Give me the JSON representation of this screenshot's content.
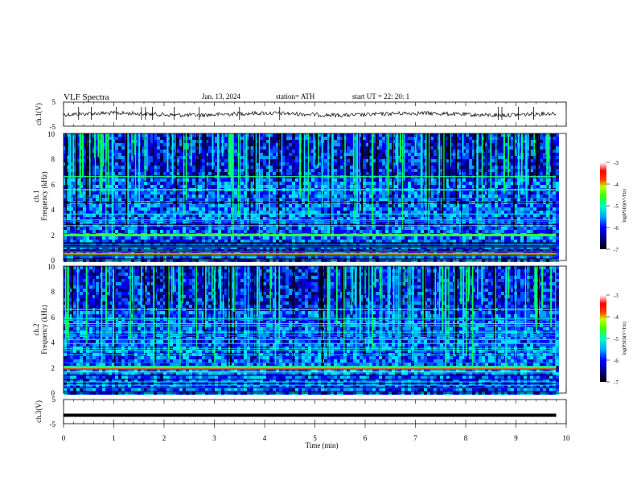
{
  "header": {
    "title": "VLF  Spectra",
    "date": "Jan.  13,  2024",
    "station": "station= ATH",
    "start_ut": "start  UT  =    22: 20: 1"
  },
  "chart_data": [
    {
      "type": "line",
      "name": "ch1-waveform",
      "ylabel": "ch.1(V)",
      "ylim": [
        -5,
        5
      ],
      "y_ticks": [
        "5",
        "-5"
      ],
      "xlim": [
        0,
        10
      ]
    },
    {
      "type": "heatmap",
      "name": "ch1-spectrogram",
      "ylabel_lines": [
        "ch.1",
        "Frequency  (kHz)"
      ],
      "ylim": [
        0,
        10
      ],
      "y_ticks": [
        "0",
        "2",
        "4",
        "6",
        "8",
        "10"
      ],
      "xlim": [
        0,
        9.8
      ],
      "colorbar": {
        "label": "log(PSD)(V²/Hz)",
        "range": [
          -7,
          -3
        ],
        "ticks": [
          "-3",
          "-4",
          "-5",
          "-6",
          "-7"
        ]
      },
      "features": {
        "strong_band_khz": 0.7,
        "band_khz": 2.0,
        "upper_cutoff_khz": 6.6
      }
    },
    {
      "type": "heatmap",
      "name": "ch2-spectrogram",
      "ylabel_lines": [
        "ch.2",
        "Frequency  (kHz)"
      ],
      "ylim": [
        0,
        10
      ],
      "y_ticks": [
        "0",
        "2",
        "4",
        "6",
        "8",
        "10"
      ],
      "xlim": [
        0,
        9.8
      ],
      "colorbar": {
        "label": "log(PSD)(V²/Hz)",
        "range": [
          -7,
          -3
        ],
        "ticks": [
          "-3",
          "-4",
          "-5",
          "-6",
          "-7"
        ]
      },
      "features": {
        "strong_band_khz": 1.9,
        "band_khz": 2.0,
        "upper_cutoff_khz": 6.6
      }
    },
    {
      "type": "line",
      "name": "ch3-waveform",
      "ylabel": "ch.3(V)",
      "ylim": [
        -5,
        5
      ],
      "y_ticks": [
        "5",
        "-5"
      ],
      "xlim": [
        0,
        9.8
      ],
      "level": -1.5
    }
  ],
  "x_axis": {
    "label": "Time  (min)",
    "ticks": [
      "0",
      "1",
      "2",
      "3",
      "4",
      "5",
      "6",
      "7",
      "8",
      "9",
      "10"
    ],
    "range": [
      0,
      10
    ]
  },
  "colors": {
    "colormap": [
      "#000000",
      "#000080",
      "#0000ff",
      "#0060ff",
      "#00c0ff",
      "#00ffc0",
      "#00ff40",
      "#80ff00",
      "#ffff00",
      "#ff8000",
      "#ff0000",
      "#ffffff"
    ]
  }
}
